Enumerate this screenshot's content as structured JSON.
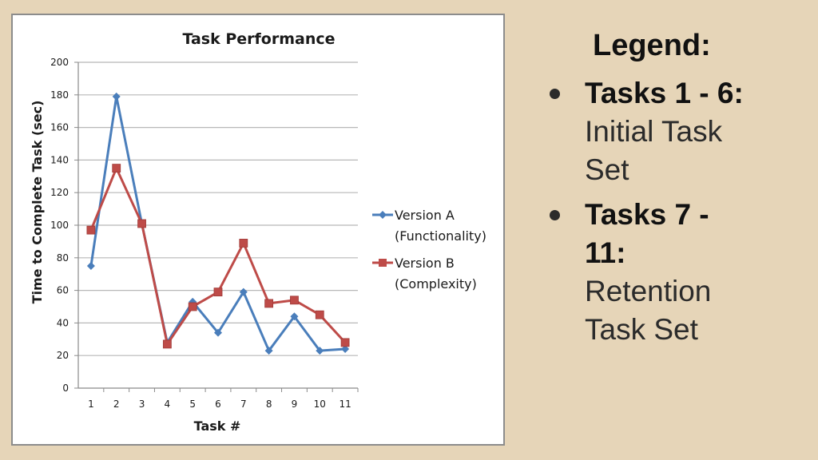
{
  "chart_data": {
    "type": "line",
    "title": "Task Performance",
    "xlabel": "Task #",
    "ylabel": "Time to Complete Task (sec)",
    "categories": [
      "1",
      "2",
      "3",
      "4",
      "5",
      "6",
      "7",
      "8",
      "9",
      "10",
      "11"
    ],
    "ylim": [
      0,
      200
    ],
    "yticks": [
      0,
      20,
      40,
      60,
      80,
      100,
      120,
      140,
      160,
      180,
      200
    ],
    "grid": true,
    "legend_position": "right",
    "series": [
      {
        "name": "Version A",
        "name_line2": "(Functionality)",
        "color": "#4a7ebb",
        "marker": "diamond",
        "values": [
          75,
          179,
          101,
          28,
          53,
          34,
          59,
          23,
          44,
          23,
          24
        ]
      },
      {
        "name": "Version B",
        "name_line2": "(Complexity)",
        "color": "#be4b48",
        "marker": "square",
        "values": [
          97,
          135,
          101,
          27,
          50,
          59,
          89,
          52,
          54,
          45,
          28
        ]
      }
    ]
  },
  "legend_panel": {
    "heading": "Legend:",
    "items": [
      {
        "label": "Tasks 1 - 6:",
        "desc_line1": "Initial Task",
        "desc_line2": "Set"
      },
      {
        "label_line1": "Tasks 7 -",
        "label_line2": "11:",
        "desc_line1": "Retention",
        "desc_line2": "Task Set"
      }
    ]
  }
}
